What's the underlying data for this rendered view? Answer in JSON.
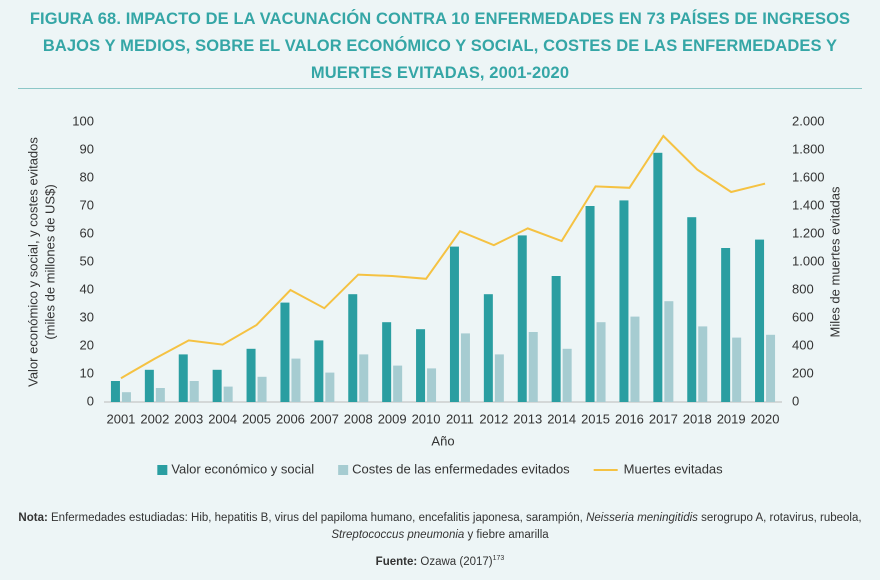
{
  "chart_data": {
    "type": "bar",
    "title": "FIGURA 68. IMPACTO DE LA VACUNACIÓN CONTRA 10 ENFERMEDADES EN 73 PAÍSES DE INGRESOS BAJOS Y MEDIOS, SOBRE EL VALOR ECONÓMICO Y SOCIAL, COSTES DE LAS ENFERMEDADES Y MUERTES EVITADAS, 2001-2020",
    "categories": [
      "2001",
      "2002",
      "2003",
      "2004",
      "2005",
      "2006",
      "2007",
      "2008",
      "2009",
      "2010",
      "2011",
      "2012",
      "2013",
      "2014",
      "2015",
      "2016",
      "2017",
      "2018",
      "2019",
      "2020"
    ],
    "series": [
      {
        "name": "Valor económico y social",
        "color": "#2a9ea1",
        "values": [
          7.5,
          11.5,
          17,
          11.5,
          19,
          35.5,
          22,
          38.5,
          28.5,
          26,
          55.5,
          38.5,
          59.5,
          45,
          70,
          72,
          89,
          66,
          55,
          58
        ]
      },
      {
        "name": "Costes de las enfermedades evitados",
        "color": "#a6ccd1",
        "values": [
          3.5,
          5,
          7.5,
          5.5,
          9,
          15.5,
          10.5,
          17,
          13,
          12,
          24.5,
          17,
          25,
          19,
          28.5,
          30.5,
          36,
          27,
          23,
          24
        ]
      },
      {
        "name": "Muertes evitadas",
        "color": "#f5c242",
        "type": "line",
        "axis": "y2",
        "values": [
          170,
          310,
          440,
          410,
          550,
          800,
          670,
          910,
          900,
          880,
          1220,
          1120,
          1240,
          1150,
          1540,
          1530,
          1900,
          1660,
          1500,
          1560
        ]
      }
    ],
    "xlabel": "Año",
    "ylabel": [
      "Valor económico y social, y costes evitados",
      "(miles de millones de US$)"
    ],
    "y2label": "Miles de muertes evitadas",
    "ylim": [
      0,
      100
    ],
    "yticks": [
      0,
      10,
      20,
      30,
      40,
      50,
      60,
      70,
      80,
      90,
      100
    ],
    "y2lim": [
      0,
      2000
    ],
    "y2ticks": [
      0,
      200,
      400,
      600,
      800,
      {
        "value": 1000,
        "label": "1.000"
      },
      {
        "value": 1200,
        "label": "1.200"
      },
      {
        "value": 1400,
        "label": "1.400"
      },
      {
        "value": 1600,
        "label": "1.600"
      },
      {
        "value": 1800,
        "label": "1.800"
      },
      {
        "value": 2000,
        "label": "2.000"
      }
    ],
    "legend": "bottom"
  },
  "note": {
    "label": "Nota:",
    "parts": [
      " Enfermedades estudiadas: Hib, hepatitis B, virus del papiloma humano, encefalitis japonesa, sarampión, ",
      "Neisseria meningitidis",
      " serogrupo A, rotavirus, rubeola, ",
      "Streptococcus pneumonia",
      " y fiebre amarilla"
    ]
  },
  "source": {
    "label": "Fuente:",
    "text": " Ozawa (2017)",
    "ref": "173"
  }
}
